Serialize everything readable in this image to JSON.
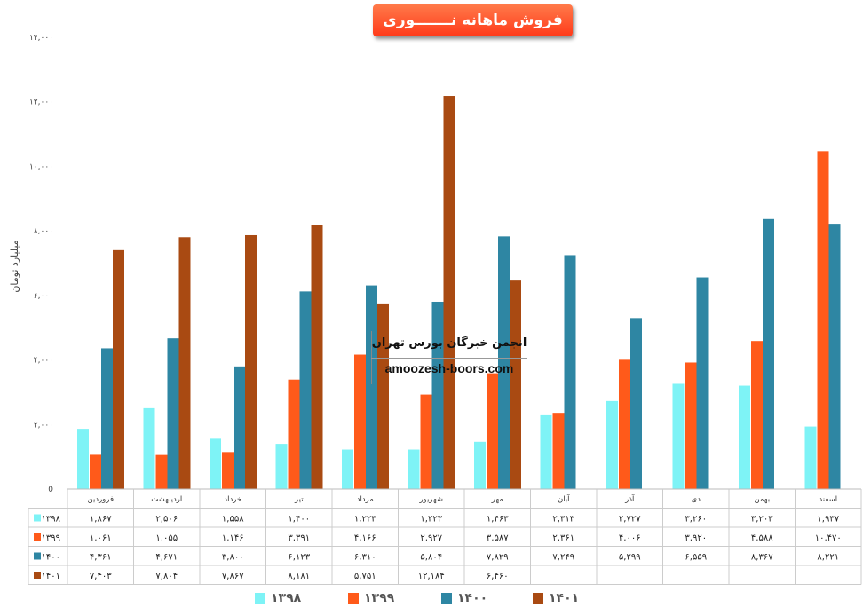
{
  "title": "فروش ماهانه نـــــــوری",
  "ylabel": "میلیارد تومان",
  "watermark": {
    "line1": "انجمن خبرگان بورس تهران",
    "line2": "amoozesh-boors.com"
  },
  "chart_data": {
    "type": "bar",
    "title": "فروش ماهانه نـــــــوری",
    "ylabel": "میلیارد تومان",
    "ylim": [
      0,
      14000
    ],
    "yticks": [
      0,
      2000,
      4000,
      6000,
      8000,
      10000,
      12000,
      14000
    ],
    "ytick_labels": [
      "0",
      "۲,۰۰۰",
      "۴,۰۰۰",
      "۶,۰۰۰",
      "۸,۰۰۰",
      "۱۰,۰۰۰",
      "۱۲,۰۰۰",
      "۱۴,۰۰۰"
    ],
    "grid": false,
    "legend_position": "bottom",
    "categories": [
      "فروردین",
      "اردیبهشت",
      "خرداد",
      "تیر",
      "مرداد",
      "شهریور",
      "مهر",
      "آبان",
      "آذر",
      "دی",
      "بهمن",
      "اسفند"
    ],
    "series": [
      {
        "name": "1398",
        "label": "۱۳۹۸",
        "color": "#7ef3f6",
        "values": [
          1867,
          2506,
          1558,
          1400,
          1223,
          1223,
          1463,
          2313,
          2727,
          3260,
          3203,
          1937
        ],
        "labels": [
          "۱,۸۶۷",
          "۲,۵۰۶",
          "۱,۵۵۸",
          "۱,۴۰۰",
          "۱,۲۲۳",
          "۱,۲۲۳",
          "۱,۴۶۳",
          "۲,۳۱۳",
          "۲,۷۲۷",
          "۳,۲۶۰",
          "۳,۲۰۳",
          "۱,۹۳۷"
        ]
      },
      {
        "name": "1399",
        "label": "۱۳۹۹",
        "color": "#ff5a1a",
        "values": [
          1061,
          1055,
          1146,
          3391,
          4166,
          2927,
          3587,
          2361,
          4006,
          3920,
          4588,
          10470
        ],
        "labels": [
          "۱,۰۶۱",
          "۱,۰۵۵",
          "۱,۱۴۶",
          "۳,۳۹۱",
          "۴,۱۶۶",
          "۲,۹۲۷",
          "۳,۵۸۷",
          "۲,۳۶۱",
          "۴,۰۰۶",
          "۳,۹۲۰",
          "۴,۵۸۸",
          "۱۰,۴۷۰"
        ]
      },
      {
        "name": "1400",
        "label": "۱۴۰۰",
        "color": "#2e86a3",
        "values": [
          4361,
          4671,
          3800,
          6123,
          6310,
          5804,
          7829,
          7249,
          5299,
          6559,
          8367,
          8221
        ],
        "labels": [
          "۴,۳۶۱",
          "۴,۶۷۱",
          "۳,۸۰۰",
          "۶,۱۲۳",
          "۶,۳۱۰",
          "۵,۸۰۴",
          "۷,۸۲۹",
          "۷,۲۴۹",
          "۵,۲۹۹",
          "۶,۵۵۹",
          "۸,۳۶۷",
          "۸,۲۲۱"
        ]
      },
      {
        "name": "1401",
        "label": "۱۴۰۱",
        "color": "#a94a12",
        "values": [
          7403,
          7804,
          7867,
          8181,
          5751,
          12184,
          6460,
          null,
          null,
          null,
          null,
          null
        ],
        "labels": [
          "۷,۴۰۳",
          "۷,۸۰۴",
          "۷,۸۶۷",
          "۸,۱۸۱",
          "۵,۷۵۱",
          "۱۲,۱۸۴",
          "۶,۴۶۰",
          "",
          "",
          "",
          "",
          ""
        ]
      }
    ]
  }
}
